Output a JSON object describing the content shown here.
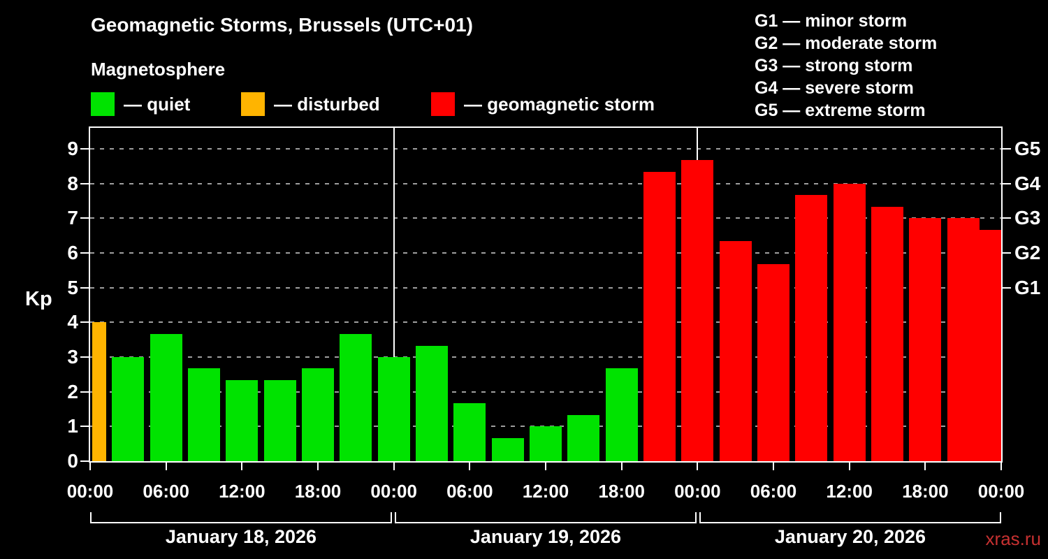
{
  "title": "Geomagnetic Storms, Brussels (UTC+01)",
  "subtitle": "Magnetosphere",
  "legend": {
    "quiet": {
      "label": "— quiet",
      "color": "#00e300"
    },
    "disturbed": {
      "label": "— disturbed",
      "color": "#ffb400"
    },
    "storm": {
      "label": "— geomagnetic storm",
      "color": "#ff0000"
    }
  },
  "g_scale": [
    "G1 — minor storm",
    "G2 — moderate storm",
    "G3 — strong storm",
    "G4 — severe storm",
    "G5 — extreme storm"
  ],
  "watermark": "xras.ru",
  "watermark_color": "#c63131",
  "chart_data": {
    "type": "bar",
    "title": "Geomagnetic Storms, Brussels (UTC+01)",
    "ylabel": "Kp",
    "ylim": [
      0,
      9.6
    ],
    "yticks": [
      0,
      1,
      2,
      3,
      4,
      5,
      6,
      7,
      8,
      9
    ],
    "grid": "horizontal-dashed",
    "legend_position": "top",
    "bar_interval_hours": 3,
    "hours_span": 72,
    "x_tick_labels": [
      "00:00",
      "06:00",
      "12:00",
      "18:00",
      "00:00",
      "06:00",
      "12:00",
      "18:00",
      "00:00",
      "06:00",
      "12:00",
      "18:00",
      "00:00"
    ],
    "day_groups": [
      {
        "label": "January 18, 2026"
      },
      {
        "label": "January 19, 2026"
      },
      {
        "label": "January 20, 2026"
      }
    ],
    "right_axis": [
      {
        "label": "G1",
        "kp": 5
      },
      {
        "label": "G2",
        "kp": 6
      },
      {
        "label": "G3",
        "kp": 7
      },
      {
        "label": "G4",
        "kp": 8
      },
      {
        "label": "G5",
        "kp": 9
      }
    ],
    "status_colors": {
      "quiet": "#00e300",
      "disturbed": "#ffb400",
      "storm": "#ff0000"
    },
    "bars": [
      {
        "t": 0,
        "kp": 4.0,
        "status": "disturbed"
      },
      {
        "t": 3,
        "kp": 3.0,
        "status": "quiet"
      },
      {
        "t": 6,
        "kp": 3.67,
        "status": "quiet"
      },
      {
        "t": 9,
        "kp": 2.67,
        "status": "quiet"
      },
      {
        "t": 12,
        "kp": 2.33,
        "status": "quiet"
      },
      {
        "t": 15,
        "kp": 2.33,
        "status": "quiet"
      },
      {
        "t": 18,
        "kp": 2.67,
        "status": "quiet"
      },
      {
        "t": 21,
        "kp": 3.67,
        "status": "quiet"
      },
      {
        "t": 24,
        "kp": 3.0,
        "status": "quiet"
      },
      {
        "t": 27,
        "kp": 3.33,
        "status": "quiet"
      },
      {
        "t": 30,
        "kp": 1.67,
        "status": "quiet"
      },
      {
        "t": 33,
        "kp": 0.67,
        "status": "quiet"
      },
      {
        "t": 36,
        "kp": 1.0,
        "status": "quiet"
      },
      {
        "t": 39,
        "kp": 1.33,
        "status": "quiet"
      },
      {
        "t": 42,
        "kp": 2.67,
        "status": "quiet"
      },
      {
        "t": 45,
        "kp": 8.33,
        "status": "storm"
      },
      {
        "t": 48,
        "kp": 8.67,
        "status": "storm"
      },
      {
        "t": 51,
        "kp": 6.33,
        "status": "storm"
      },
      {
        "t": 54,
        "kp": 5.67,
        "status": "storm"
      },
      {
        "t": 57,
        "kp": 7.67,
        "status": "storm"
      },
      {
        "t": 60,
        "kp": 8.0,
        "status": "storm"
      },
      {
        "t": 63,
        "kp": 7.33,
        "status": "storm"
      },
      {
        "t": 66,
        "kp": 7.0,
        "status": "storm"
      },
      {
        "t": 69,
        "kp": 7.0,
        "status": "storm"
      },
      {
        "t": 72,
        "kp": 6.67,
        "status": "storm"
      }
    ]
  }
}
